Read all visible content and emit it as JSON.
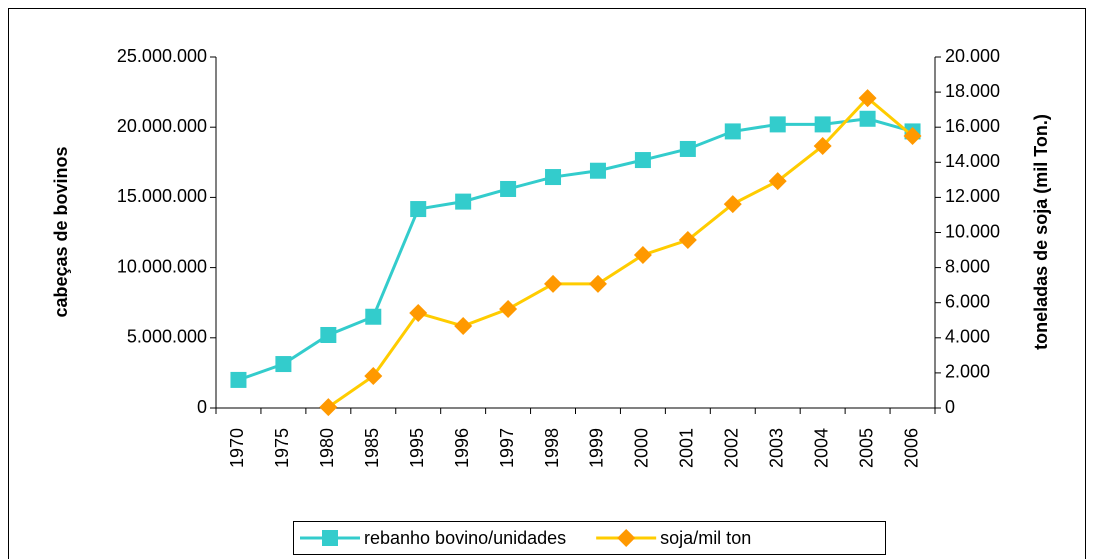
{
  "chart_data": {
    "type": "line",
    "categories": [
      "1970",
      "1975",
      "1980",
      "1985",
      "1995",
      "1996",
      "1997",
      "1998",
      "1999",
      "2000",
      "2001",
      "2002",
      "2003",
      "2004",
      "2005",
      "2006"
    ],
    "y_label": "cabeças de bovinos",
    "y2_label": "toneladas de soja (mil Ton.)",
    "ylim": [
      0,
      25000000
    ],
    "yticks": [
      0,
      {
        "value": 5000000,
        "label": "5.000.000"
      },
      {
        "value": 10000000,
        "label": "10.000.000"
      },
      {
        "value": 15000000,
        "label": "15.000.000"
      },
      {
        "value": 20000000,
        "label": "20.000.000"
      },
      {
        "value": 25000000,
        "label": "25.000.000"
      }
    ],
    "y2lim": [
      0,
      20000
    ],
    "y2ticks": [
      0,
      {
        "value": 2000,
        "label": "2.000"
      },
      {
        "value": 4000,
        "label": "4.000"
      },
      {
        "value": 6000,
        "label": "6.000"
      },
      {
        "value": 8000,
        "label": "8.000"
      },
      {
        "value": 10000,
        "label": "10.000"
      },
      {
        "value": 12000,
        "label": "12.000"
      },
      {
        "value": 14000,
        "label": "14.000"
      },
      {
        "value": 16000,
        "label": "16.000"
      },
      {
        "value": 18000,
        "label": "18.000"
      },
      {
        "value": 20000,
        "label": "20.000"
      }
    ],
    "grid": false,
    "legend": "bottom",
    "series": [
      {
        "name": "rebanho bovino/unidades",
        "color": "#33cccc",
        "marker": "square",
        "marker_color": "#33cccc",
        "values": [
          2000000,
          3130000,
          5200000,
          6500000,
          14170000,
          14700000,
          15600000,
          16450000,
          16900000,
          17660000,
          18450000,
          19700000,
          20200000,
          20200000,
          20600000,
          19700000
        ]
      },
      {
        "name": "soja/mil ton",
        "color": "#ffcc00",
        "marker": "diamond",
        "marker_color": "#ff9900",
        "axis": "y2",
        "values": [
          null,
          null,
          50,
          1820,
          5410,
          4670,
          5640,
          7070,
          7070,
          8720,
          9570,
          11620,
          12930,
          14930,
          17660,
          15500
        ]
      }
    ]
  }
}
